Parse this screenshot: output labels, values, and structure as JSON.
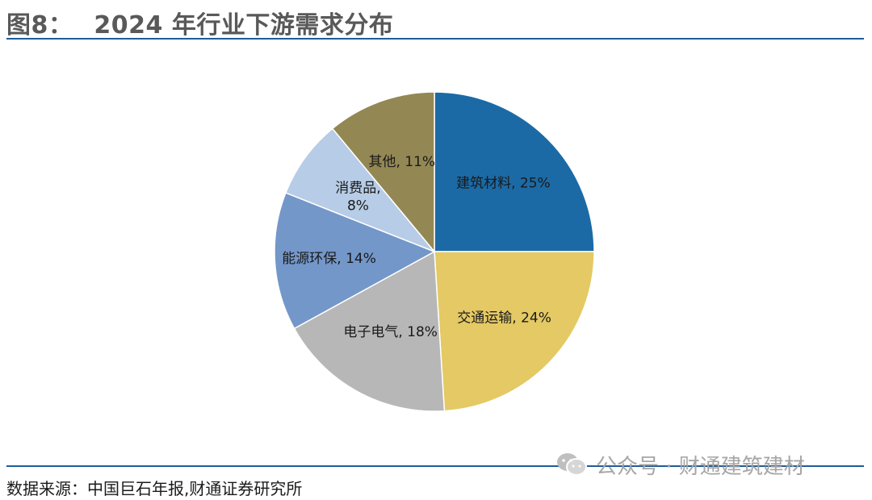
{
  "header": {
    "figure_no": "图8：",
    "title": "2024 年行业下游需求分布"
  },
  "chart_data": {
    "type": "pie",
    "title": "2024 年行业下游需求分布",
    "start": "12 o'clock",
    "direction": "clockwise",
    "slices": [
      {
        "name": "建筑材料",
        "value": 25,
        "label": "建筑材料, 25%",
        "color": "#1b6aa5"
      },
      {
        "name": "交通运输",
        "value": 24,
        "label": "交通运输, 24%",
        "color": "#e4c964"
      },
      {
        "name": "电子电气",
        "value": 18,
        "label": "电子电气, 18%",
        "color": "#b7b7b7"
      },
      {
        "name": "能源环保",
        "value": 14,
        "label": "能源环保, 14%",
        "color": "#7397c9"
      },
      {
        "name": "消费品",
        "value": 8,
        "label": "消费品,|8%",
        "color": "#b7cce6"
      },
      {
        "name": "其他",
        "value": 11,
        "label": "其他, 11%",
        "color": "#938754"
      }
    ]
  },
  "footer": {
    "source": "数据来源：中国巨石年报,财通证券研究所",
    "watermark": "公众号 · 财通建筑建材",
    "watermark_icon": "wechat-icon"
  }
}
